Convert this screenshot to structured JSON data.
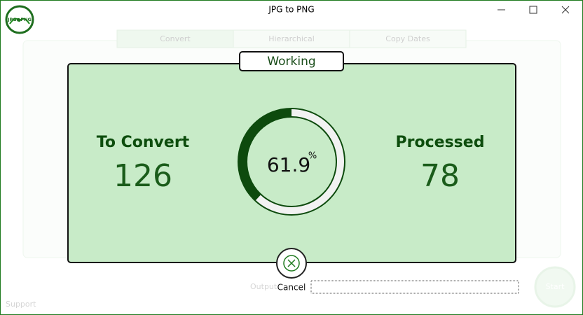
{
  "window": {
    "title": "JPG to PNG",
    "logo": "JPG●PNG"
  },
  "background": {
    "tabs": [
      "Convert",
      "Hierarchical",
      "Copy Dates"
    ],
    "output_label": "Output",
    "support": "Support",
    "start": "Start"
  },
  "dialog": {
    "title": "Working",
    "to_convert": {
      "label": "To Convert",
      "value": 126
    },
    "processed": {
      "label": "Processed",
      "value": 78
    },
    "progress": {
      "value": 61.9,
      "unit": "%"
    },
    "cancel": "Cancel"
  }
}
